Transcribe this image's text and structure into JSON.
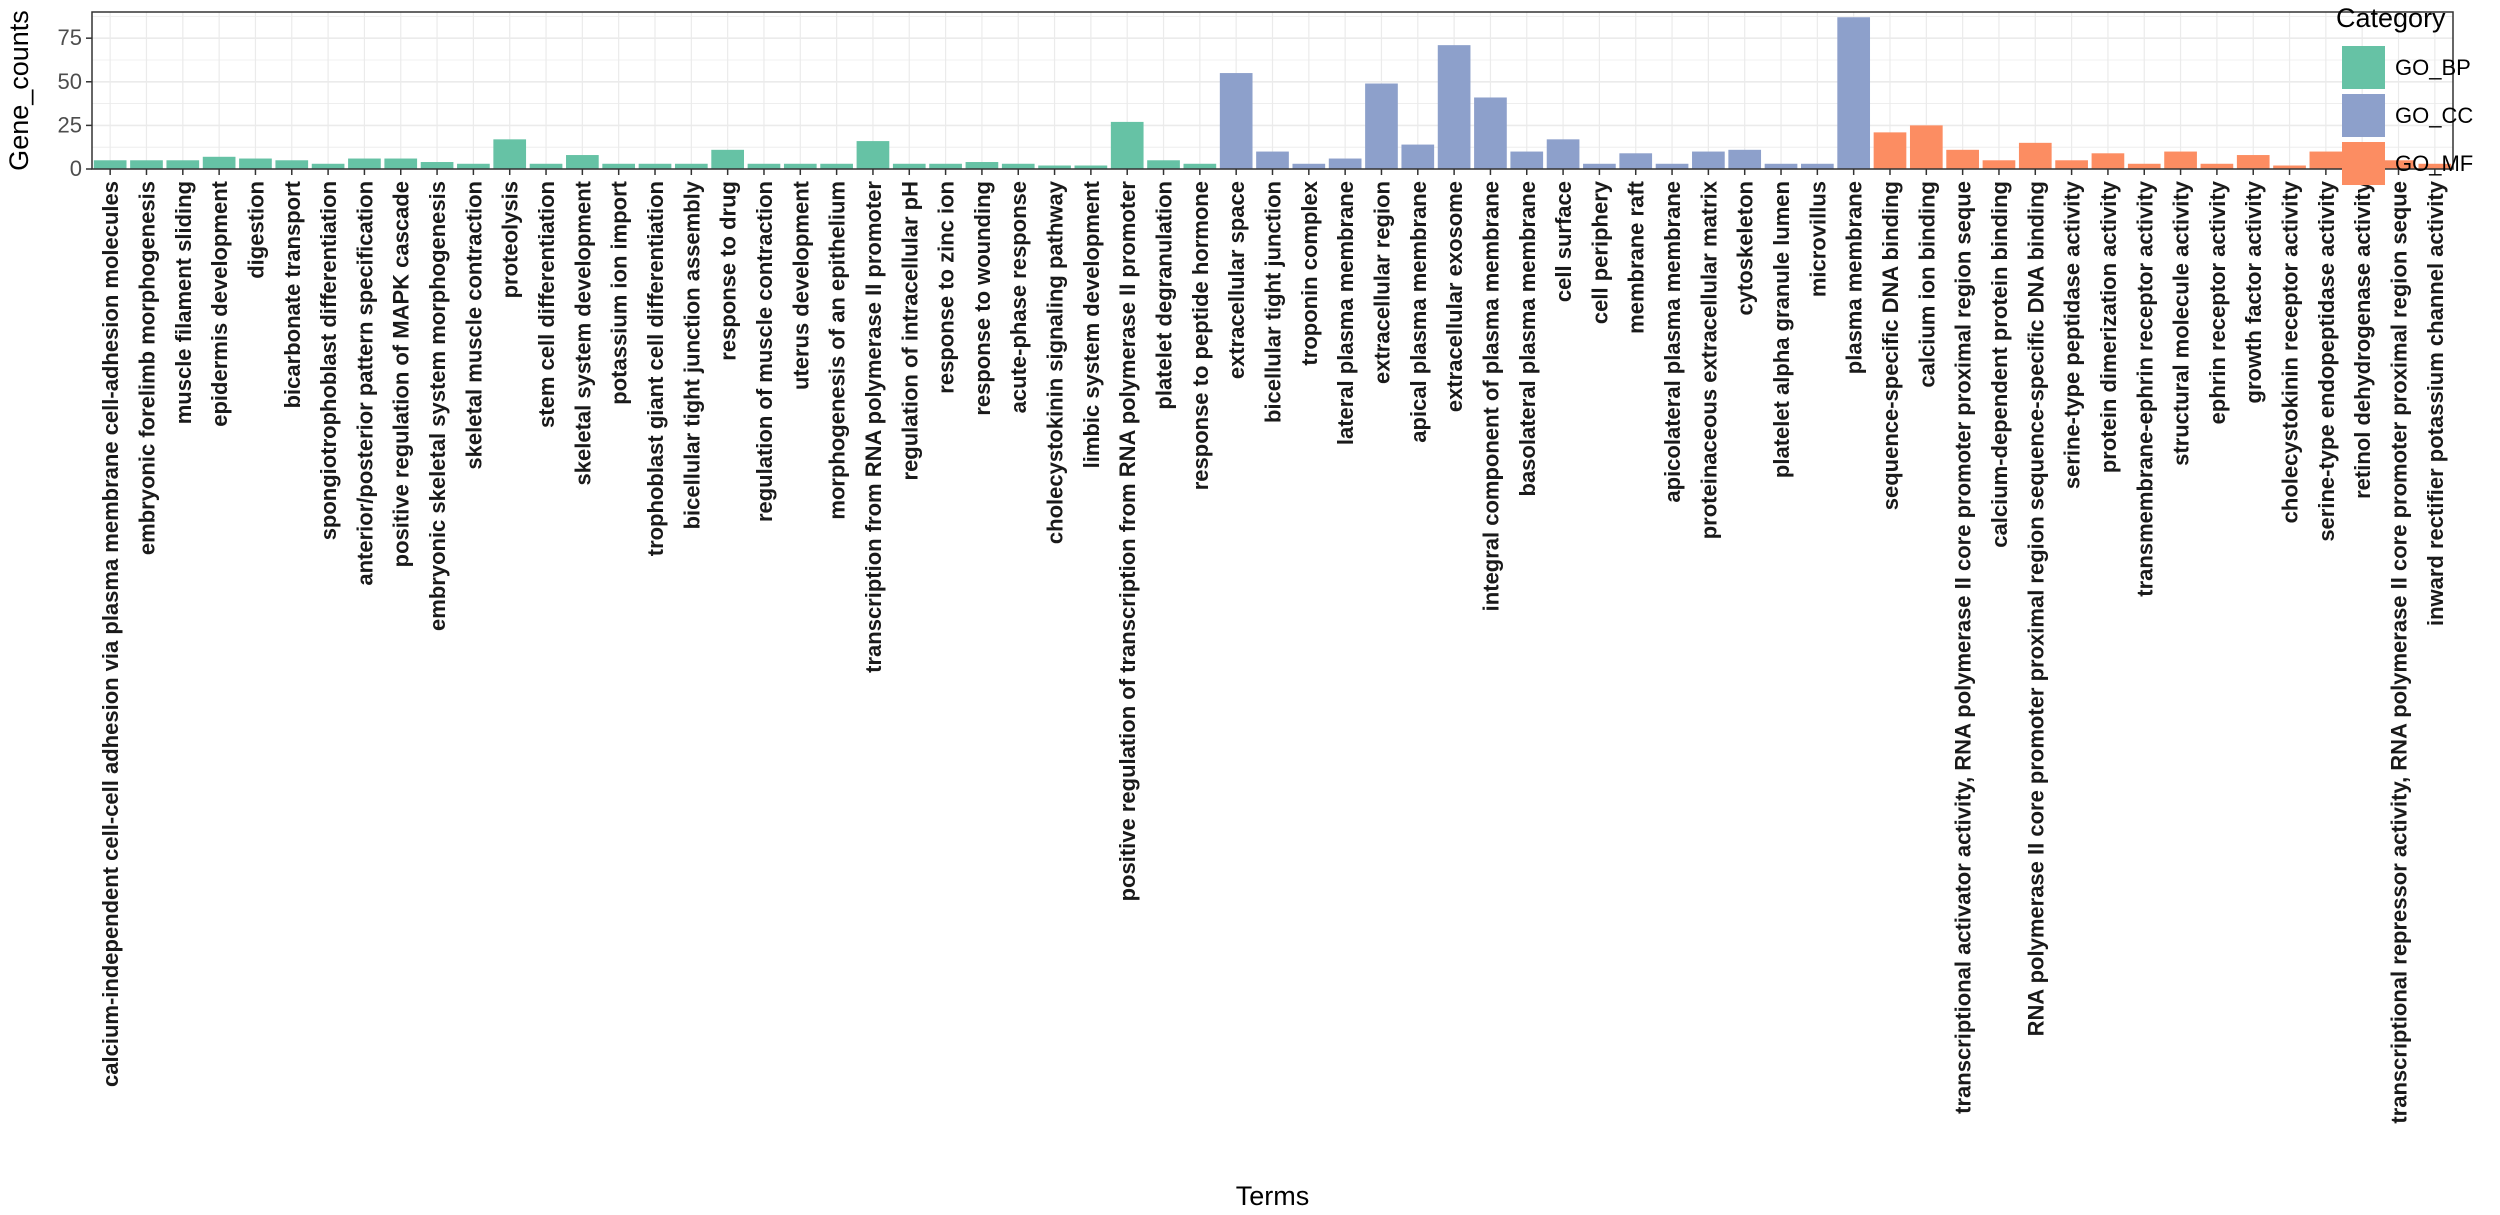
{
  "chart_data": {
    "type": "bar",
    "xlabel": "Terms",
    "ylabel": "Gene_counts",
    "ylim": [
      0,
      90
    ],
    "yticks": [
      0,
      25,
      50,
      75
    ],
    "grid": true,
    "legend": {
      "title": "Category",
      "position": "right",
      "entries": [
        {
          "name": "GO_BP",
          "color": "#66c2a5"
        },
        {
          "name": "GO_CC",
          "color": "#8da0cb"
        },
        {
          "name": "GO_MF",
          "color": "#fc8d62"
        }
      ]
    },
    "categories": [
      "calcium-independent cell-cell adhesion via plasma membrane cell-adhesion molecules",
      "embryonic forelimb morphogenesis",
      "muscle filament sliding",
      "epidermis development",
      "digestion",
      "bicarbonate transport",
      "spongiotrophoblast differentiation",
      "anterior/posterior pattern specification",
      "positive regulation of MAPK cascade",
      "embryonic skeletal system morphogenesis",
      "skeletal muscle contraction",
      "proteolysis",
      "stem cell differentiation",
      "skeletal system development",
      "potassium ion import",
      "trophoblast giant cell differentiation",
      "bicellular tight junction assembly",
      "response to drug",
      "regulation of muscle contraction",
      "uterus development",
      "morphogenesis of an epithelium",
      "transcription from RNA polymerase II promoter",
      "regulation of intracellular pH",
      "response to zinc ion",
      "response to wounding",
      "acute-phase response",
      "cholecystokinin signaling pathway",
      "limbic system development",
      "positive regulation of transcription from RNA polymerase II promoter",
      "platelet degranulation",
      "response to peptide hormone",
      "extracellular space",
      "bicellular tight junction",
      "troponin complex",
      "lateral plasma membrane",
      "extracellular region",
      "apical plasma membrane",
      "extracellular exosome",
      "integral component of plasma membrane",
      "basolateral plasma membrane",
      "cell surface",
      "cell periphery",
      "membrane raft",
      "apicolateral plasma membrane",
      "proteinaceous extracellular matrix",
      "cytoskeleton",
      "platelet alpha granule lumen",
      "microvillus",
      "plasma membrane",
      "sequence-specific DNA binding",
      "calcium ion binding",
      "transcriptional activator activity, RNA polymerase II core promoter proximal region seque",
      "calcium-dependent protein binding",
      "RNA polymerase II core promoter proximal region sequence-specific DNA binding",
      "serine-type peptidase activity",
      "protein dimerization activity",
      "transmembrane-ephrin receptor activity",
      "structural molecule activity",
      "ephrin receptor activity",
      "growth factor activity",
      "cholecystokinin receptor activity",
      "serine-type endopeptidase activity",
      "retinol dehydrogenase activity",
      "transcriptional repressor activity, RNA polymerase II core promoter proximal region seque",
      "inward rectifier potassium channel activity"
    ],
    "values": [
      5,
      5,
      5,
      7,
      6,
      5,
      3,
      6,
      6,
      4,
      3,
      17,
      3,
      8,
      3,
      3,
      3,
      11,
      3,
      3,
      3,
      16,
      3,
      3,
      4,
      3,
      2,
      2,
      27,
      5,
      3,
      55,
      10,
      3,
      6,
      49,
      14,
      71,
      41,
      10,
      17,
      3,
      9,
      3,
      10,
      11,
      3,
      3,
      87,
      21,
      25,
      11,
      5,
      15,
      5,
      9,
      3,
      10,
      3,
      8,
      2,
      10,
      3,
      5,
      3
    ],
    "groups": [
      "GO_BP",
      "GO_BP",
      "GO_BP",
      "GO_BP",
      "GO_BP",
      "GO_BP",
      "GO_BP",
      "GO_BP",
      "GO_BP",
      "GO_BP",
      "GO_BP",
      "GO_BP",
      "GO_BP",
      "GO_BP",
      "GO_BP",
      "GO_BP",
      "GO_BP",
      "GO_BP",
      "GO_BP",
      "GO_BP",
      "GO_BP",
      "GO_BP",
      "GO_BP",
      "GO_BP",
      "GO_BP",
      "GO_BP",
      "GO_BP",
      "GO_BP",
      "GO_BP",
      "GO_BP",
      "GO_BP",
      "GO_CC",
      "GO_CC",
      "GO_CC",
      "GO_CC",
      "GO_CC",
      "GO_CC",
      "GO_CC",
      "GO_CC",
      "GO_CC",
      "GO_CC",
      "GO_CC",
      "GO_CC",
      "GO_CC",
      "GO_CC",
      "GO_CC",
      "GO_CC",
      "GO_CC",
      "GO_CC",
      "GO_MF",
      "GO_MF",
      "GO_MF",
      "GO_MF",
      "GO_MF",
      "GO_MF",
      "GO_MF",
      "GO_MF",
      "GO_MF",
      "GO_MF",
      "GO_MF",
      "GO_MF",
      "GO_MF",
      "GO_MF",
      "GO_MF",
      "GO_MF"
    ]
  }
}
